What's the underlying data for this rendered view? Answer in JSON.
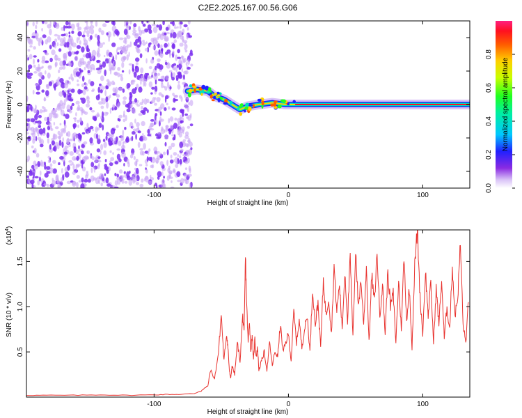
{
  "title": "C2E2.2025.167.00.56.G06",
  "colors": {
    "snr_line": "#e8322e",
    "spec_purple": "#7b2ff0",
    "spec_light": "#c9a6f5",
    "frame": "#000000"
  },
  "chart_data": [
    {
      "type": "heatmap",
      "xlabel": "Height of straight line (km)",
      "ylabel": "Frequency (Hz)",
      "xlim": [
        -195,
        135
      ],
      "ylim": [
        -50,
        50
      ],
      "xticks": [
        -100,
        0,
        100
      ],
      "xtick_labels": [
        "-100",
        "0",
        "100"
      ],
      "yticks": [
        -40,
        -20,
        0,
        20,
        40
      ],
      "ytick_labels": [
        "-40",
        "-20",
        "0",
        "20",
        "40"
      ],
      "noise_region": {
        "x_start": -195,
        "x_end": -72,
        "level": 0.05
      },
      "signal_track": [
        {
          "x": -75,
          "y": 8
        },
        {
          "x": -68,
          "y": 9
        },
        {
          "x": -60,
          "y": 8
        },
        {
          "x": -55,
          "y": 5
        },
        {
          "x": -48,
          "y": 3
        },
        {
          "x": -42,
          "y": 0
        },
        {
          "x": -36,
          "y": -3
        },
        {
          "x": -30,
          "y": -1
        },
        {
          "x": -22,
          "y": 0
        },
        {
          "x": -12,
          "y": 1
        },
        {
          "x": -2,
          "y": 0
        },
        {
          "x": 5,
          "y": 0
        },
        {
          "x": 135,
          "y": 0
        }
      ],
      "colorbar": {
        "label": "Normalized spectral amplitude",
        "range": [
          0,
          1
        ],
        "ticks": [
          0.0,
          0.2,
          0.4,
          0.6,
          0.8
        ],
        "tick_labels": [
          "0.0",
          "0.2",
          "0.4",
          "0.6",
          "0.8"
        ]
      }
    },
    {
      "type": "line",
      "xlabel": "Height of straight line (km)",
      "ylabel": "SNR (10 * v/v)",
      "y_multiplier": "(x10",
      "y_multiplier_exp": "4",
      "y_multiplier_close": ")",
      "xlim": [
        -195,
        135
      ],
      "ylim": [
        0,
        1.85
      ],
      "xticks": [
        -100,
        0,
        100
      ],
      "xtick_labels": [
        "-100",
        "0",
        "100"
      ],
      "yticks": [
        0.5,
        1.0,
        1.5
      ],
      "ytick_labels": [
        "0.5",
        "1.0",
        "1.5"
      ],
      "series": [
        {
          "x": [
            -195,
            -180,
            -160,
            -140,
            -120,
            -100,
            -90,
            -80,
            -70,
            -65,
            -60,
            -58,
            -55,
            -52,
            -50,
            -48,
            -46,
            -45,
            -44,
            -43,
            -42,
            -40,
            -38,
            -36,
            -34,
            -33,
            -32,
            -31,
            -30,
            -29,
            -28,
            -27,
            -26,
            -25,
            -24,
            -23,
            -22,
            -20,
            -18,
            -16,
            -14,
            -12,
            -10,
            -8,
            -6,
            -4,
            -2,
            0,
            2,
            4,
            6,
            8,
            10,
            12,
            14,
            16,
            18,
            20,
            22,
            24,
            26,
            28,
            30,
            32,
            34,
            36,
            38,
            40,
            42,
            44,
            46,
            48,
            50,
            52,
            54,
            56,
            58,
            60,
            62,
            64,
            66,
            68,
            70,
            72,
            74,
            76,
            78,
            80,
            82,
            84,
            86,
            88,
            90,
            92,
            94,
            96,
            98,
            100,
            102,
            104,
            106,
            108,
            110,
            112,
            114,
            116,
            118,
            120,
            122,
            124,
            126,
            128,
            130,
            132,
            134
          ],
          "y": [
            0.02,
            0.02,
            0.02,
            0.025,
            0.02,
            0.025,
            0.03,
            0.03,
            0.04,
            0.07,
            0.12,
            0.3,
            0.2,
            0.5,
            0.92,
            0.4,
            0.7,
            0.55,
            0.3,
            0.2,
            0.35,
            0.25,
            0.6,
            0.4,
            0.9,
            0.7,
            1.55,
            1.0,
            0.6,
            0.85,
            0.5,
            0.7,
            0.4,
            0.65,
            0.45,
            0.55,
            0.3,
            0.4,
            0.5,
            0.3,
            0.6,
            0.35,
            0.5,
            0.45,
            0.8,
            0.5,
            0.6,
            0.7,
            0.4,
            0.95,
            0.6,
            0.85,
            0.55,
            0.75,
            0.9,
            0.5,
            1.2,
            0.8,
            1.05,
            0.55,
            1.3,
            0.9,
            1.1,
            0.7,
            1.45,
            0.95,
            1.25,
            0.75,
            1.4,
            0.85,
            1.55,
            0.65,
            1.65,
            1.0,
            1.3,
            0.8,
            1.45,
            0.6,
            1.35,
            1.05,
            1.6,
            0.9,
            1.25,
            0.7,
            1.4,
            1.0,
            1.15,
            0.6,
            1.3,
            0.75,
            1.55,
            0.85,
            1.2,
            0.55,
            1.45,
            1.85,
            1.1,
            0.7,
            1.4,
            0.9,
            1.25,
            0.6,
            1.2,
            0.8,
            1.3,
            0.65,
            1.0,
            0.75,
            1.45,
            0.9,
            1.1,
            1.7,
            0.8,
            0.6,
            1.05
          ]
        }
      ]
    }
  ]
}
